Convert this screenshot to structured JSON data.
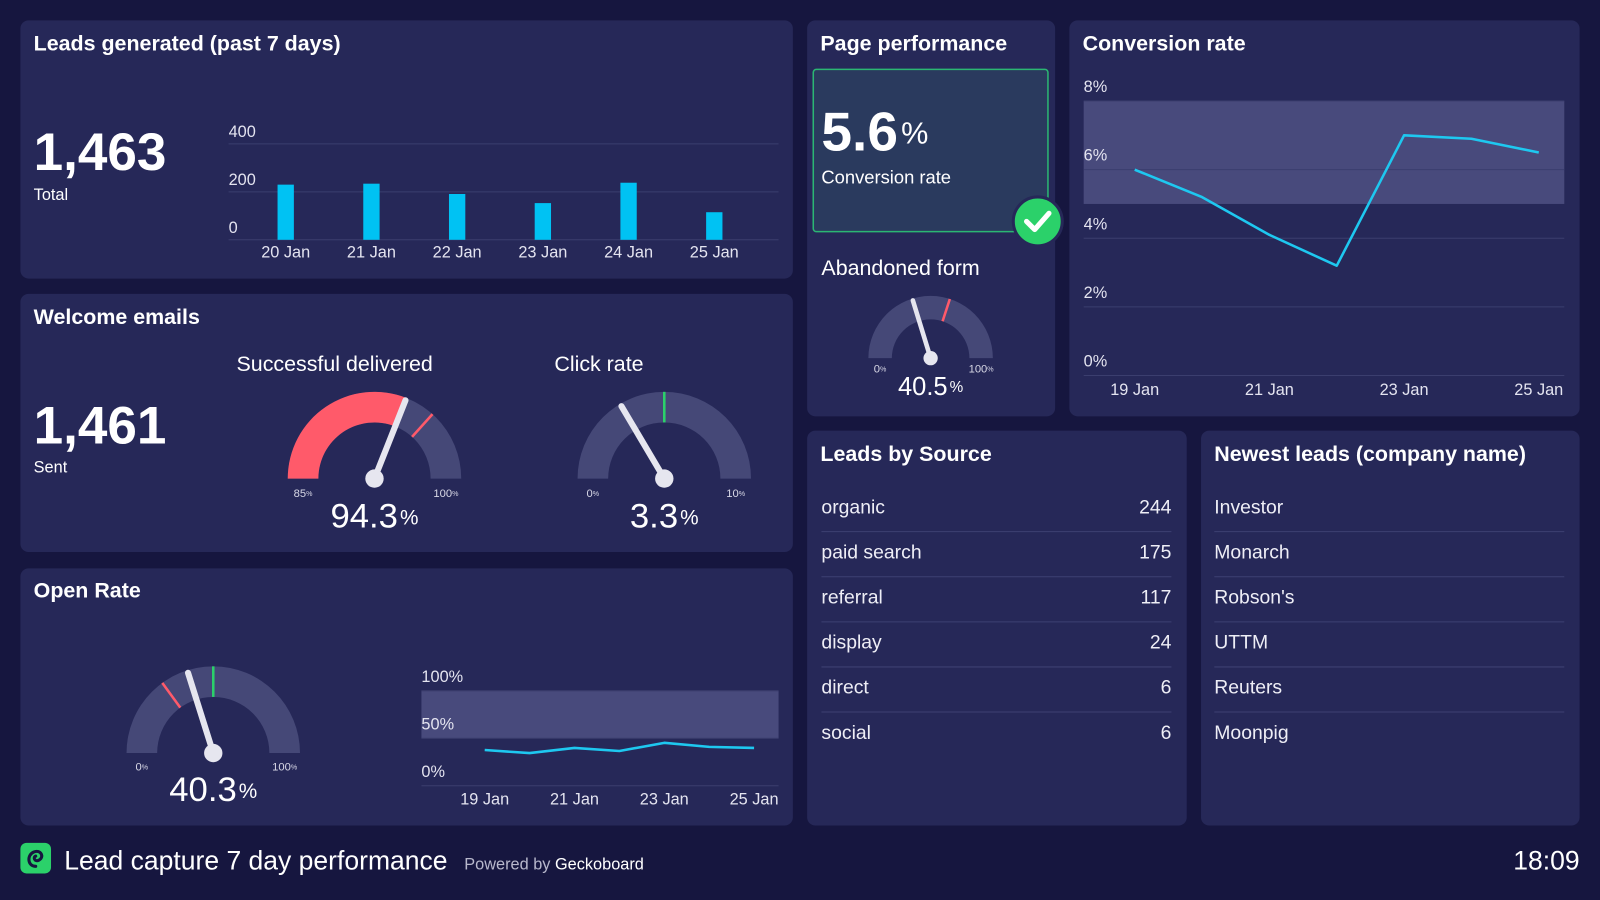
{
  "leads_generated": {
    "title": "Leads generated (past 7 days)",
    "total": "1,463",
    "total_label": "Total",
    "chart": {
      "type": "bar",
      "categories": [
        "20 Jan",
        "21 Jan",
        "22 Jan",
        "23 Jan",
        "24 Jan",
        "25 Jan"
      ],
      "values": [
        230,
        234,
        191,
        153,
        238,
        115
      ],
      "color": "#00c2f3",
      "ylim": [
        0,
        400
      ],
      "yticks": [
        0,
        200,
        400
      ],
      "grid": true
    }
  },
  "welcome_emails": {
    "title": "Welcome emails",
    "total": "1,461",
    "total_label": "Sent",
    "gauges": [
      {
        "type": "gauge",
        "title": "Successful delivered",
        "value": 94.3,
        "unit": "%",
        "min": 85,
        "max": 100,
        "fill_color": "#ff5a6a",
        "markers": [
          {
            "value": 96,
            "color": "#ff5a6a"
          }
        ]
      },
      {
        "type": "gauge",
        "title": "Click rate",
        "value": 3.3,
        "unit": "%",
        "min": 0,
        "max": 10,
        "markers": [
          {
            "value": 5,
            "color": "#2bd16a"
          }
        ]
      }
    ]
  },
  "open_rate": {
    "title": "Open Rate",
    "gauge": {
      "type": "gauge",
      "value": 40.3,
      "unit": "%",
      "min": 0,
      "max": 100,
      "markers": [
        {
          "value": 30,
          "color": "#ff5a6a"
        },
        {
          "value": 50,
          "color": "#2bd16a"
        }
      ]
    },
    "chart": {
      "type": "line",
      "categories": [
        "19 Jan",
        null,
        "21 Jan",
        null,
        "23 Jan",
        null,
        "25 Jan"
      ],
      "values": [
        37.6,
        34.4,
        39.8,
        36.6,
        45.2,
        40.9,
        39.8
      ],
      "color": "#1ec8f0",
      "ylim": [
        0,
        100
      ],
      "yticks": [
        {
          "value": 0,
          "label": "0%"
        },
        {
          "value": 50,
          "label": "50%"
        },
        {
          "value": 100,
          "label": "100%"
        }
      ],
      "band": [
        50,
        100
      ],
      "grid": true
    }
  },
  "page_performance": {
    "title": "Page performance",
    "conversion": {
      "value": 5.6,
      "unit": "%",
      "label": "Conversion rate"
    },
    "abandoned_form": {
      "type": "gauge",
      "title": "Abandoned form",
      "value": 40.5,
      "unit": "%",
      "min": 0,
      "max": 100,
      "markers": [
        {
          "value": 60,
          "color": "#ff5a6a"
        }
      ]
    }
  },
  "conversion_rate": {
    "title": "Conversion rate",
    "chart": {
      "type": "line",
      "categories": [
        "19 Jan",
        null,
        "21 Jan",
        null,
        "23 Jan",
        null,
        "25 Jan"
      ],
      "values": [
        6.0,
        5.2,
        4.1,
        3.2,
        7.0,
        6.9,
        6.5
      ],
      "color": "#1ec8f0",
      "ylim": [
        0,
        8
      ],
      "yticks": [
        {
          "value": 0,
          "label": "0%"
        },
        {
          "value": 2,
          "label": "2%"
        },
        {
          "value": 4,
          "label": "4%"
        },
        {
          "value": 6,
          "label": "6%"
        },
        {
          "value": 8,
          "label": "8%"
        }
      ],
      "band": [
        5,
        8
      ],
      "grid": true
    }
  },
  "leads_by_source": {
    "title": "Leads by Source",
    "rows": [
      [
        "organic",
        244
      ],
      [
        "paid search",
        175
      ],
      [
        "referral",
        117
      ],
      [
        "display",
        24
      ],
      [
        "direct",
        6
      ],
      [
        "social",
        6
      ]
    ]
  },
  "newest_leads": {
    "title": "Newest leads (company name)",
    "rows": [
      "Investor",
      "Monarch",
      "Robson's",
      "UTTM",
      "Reuters",
      "Moonpig"
    ]
  },
  "footer": {
    "title": "Lead capture 7 day performance",
    "powered_by": "Powered by",
    "brand": "Geckoboard",
    "time": "18:09"
  }
}
